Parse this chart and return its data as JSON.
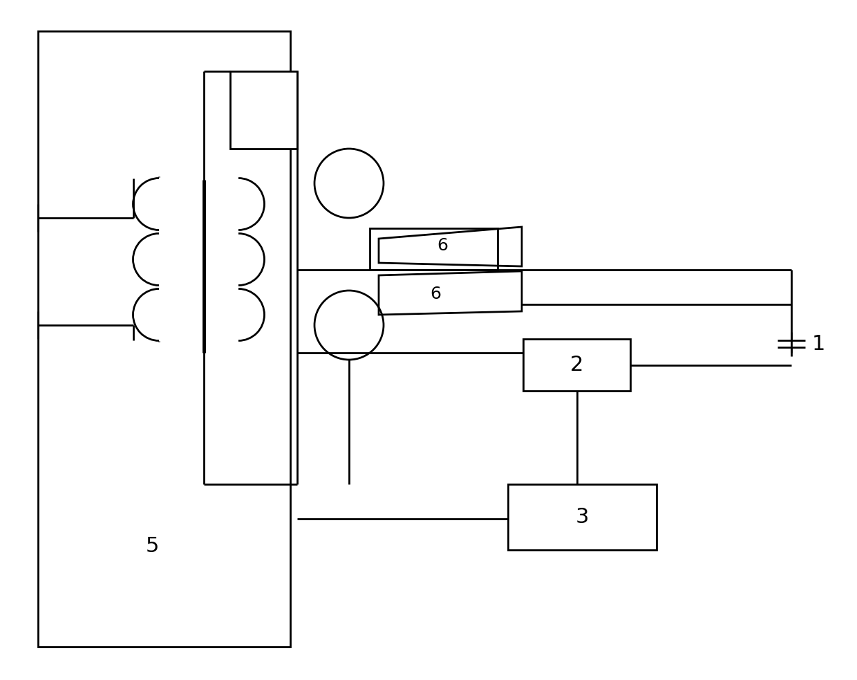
{
  "bg_color": "#ffffff",
  "line_color": "#000000",
  "lw": 2.0,
  "lw_thick": 3.5
}
